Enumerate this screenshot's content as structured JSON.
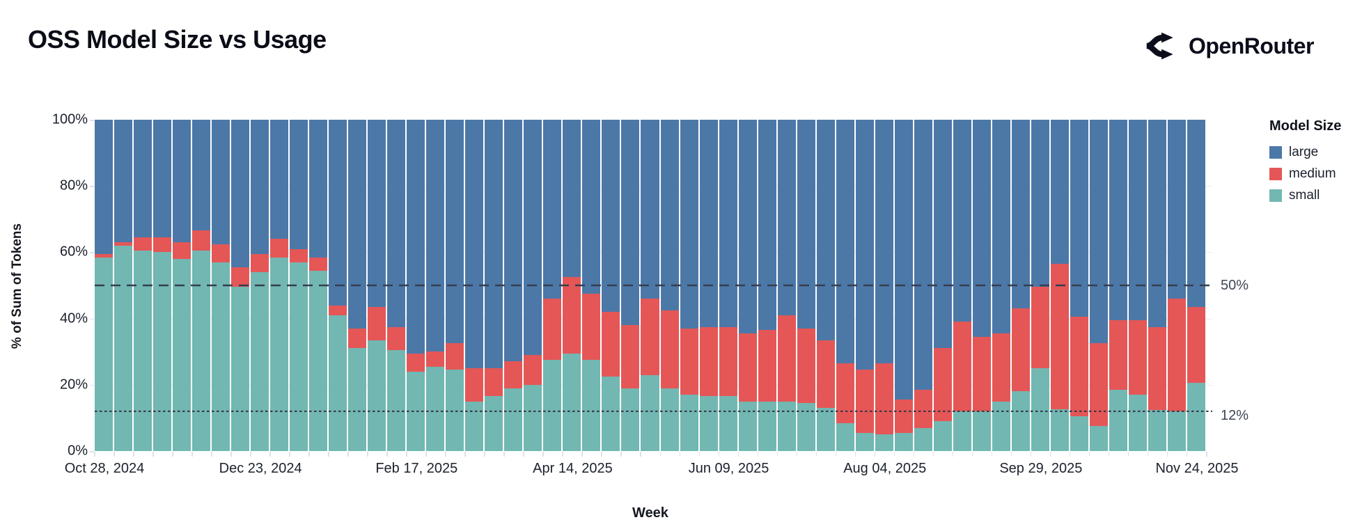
{
  "header": {
    "title": "OSS Model Size vs Usage",
    "brand": "OpenRouter"
  },
  "legend": {
    "title": "Model Size",
    "items": [
      {
        "label": "large",
        "color": "#4c78a8"
      },
      {
        "label": "medium",
        "color": "#e45756"
      },
      {
        "label": "small",
        "color": "#72b7b2"
      }
    ]
  },
  "chart_data": {
    "type": "bar",
    "stacked": true,
    "title": "OSS Model Size vs Usage",
    "xlabel": "Week",
    "ylabel": "% of Sum of Tokens",
    "ylim": [
      0,
      100
    ],
    "unit": "%",
    "n_bars": 57,
    "y_tick_labels": [
      "100%",
      "80%",
      "60%",
      "40%",
      "20%",
      "0%"
    ],
    "y_tick_values": [
      100,
      80,
      60,
      40,
      20,
      0
    ],
    "x_tick_labels": [
      "Oct 28, 2024",
      "Dec 23, 2024",
      "Feb 17, 2025",
      "Apr 14, 2025",
      "Jun 09, 2025",
      "Aug 04, 2025",
      "Sep 29, 2025",
      "Nov 24, 2025"
    ],
    "x_tick_bar_indices": [
      0,
      8,
      16,
      24,
      32,
      40,
      48,
      56
    ],
    "legend_position": "top-right",
    "grid": "subtle-horizontal",
    "reference_lines": [
      {
        "label": "50%",
        "value": 50,
        "style": "dashed"
      },
      {
        "label": "12%",
        "value": 12,
        "style": "dotted"
      }
    ],
    "series": [
      {
        "name": "small",
        "color": "#72b7b2",
        "values": [
          58.5,
          62,
          60.5,
          60,
          58,
          60.5,
          57,
          49.5,
          54,
          58.5,
          57,
          54.5,
          41,
          31,
          33.5,
          30.5,
          24,
          25.5,
          24.5,
          15,
          16.5,
          19,
          20,
          27.5,
          29.5,
          27.5,
          22.5,
          19,
          23,
          19,
          17,
          16.5,
          16.5,
          15,
          15,
          15,
          14.5,
          13,
          8.5,
          5.5,
          5,
          5.5,
          7,
          9,
          12,
          12,
          15,
          18,
          25,
          12.5,
          10.5,
          7.5,
          18.5,
          17,
          12.5,
          12,
          20.5
        ]
      },
      {
        "name": "medium",
        "color": "#e45756",
        "values": [
          1,
          1,
          4,
          4.5,
          5,
          6,
          5.5,
          6,
          5.5,
          5.5,
          4,
          4,
          3,
          6,
          10,
          7,
          5.5,
          4.5,
          8,
          10,
          8.5,
          8,
          9,
          18.5,
          23,
          20,
          19.5,
          19,
          23,
          23.5,
          20,
          21,
          21,
          20.5,
          21.5,
          26,
          22.5,
          20.5,
          18,
          19,
          21.5,
          10,
          11.5,
          22,
          27,
          22.5,
          20.5,
          25,
          24.5,
          44,
          30,
          25,
          21,
          22.5,
          25,
          34,
          23
        ]
      },
      {
        "name": "large",
        "color": "#4c78a8",
        "values": [
          40.5,
          37,
          35.5,
          35.5,
          37,
          33.5,
          37.5,
          44.5,
          40.5,
          36,
          39,
          41.5,
          56,
          63,
          56.5,
          62.5,
          70.5,
          70,
          67.5,
          75,
          75,
          73,
          71,
          54,
          47.5,
          52.5,
          58,
          62,
          54,
          57.5,
          63,
          62.5,
          62.5,
          64.5,
          63.5,
          59,
          63,
          66.5,
          73.5,
          75.5,
          73.5,
          84.5,
          81.5,
          69,
          61,
          65.5,
          64.5,
          57,
          50.5,
          43.5,
          59.5,
          67.5,
          60.5,
          60.5,
          62.5,
          54,
          56.5
        ]
      }
    ]
  }
}
